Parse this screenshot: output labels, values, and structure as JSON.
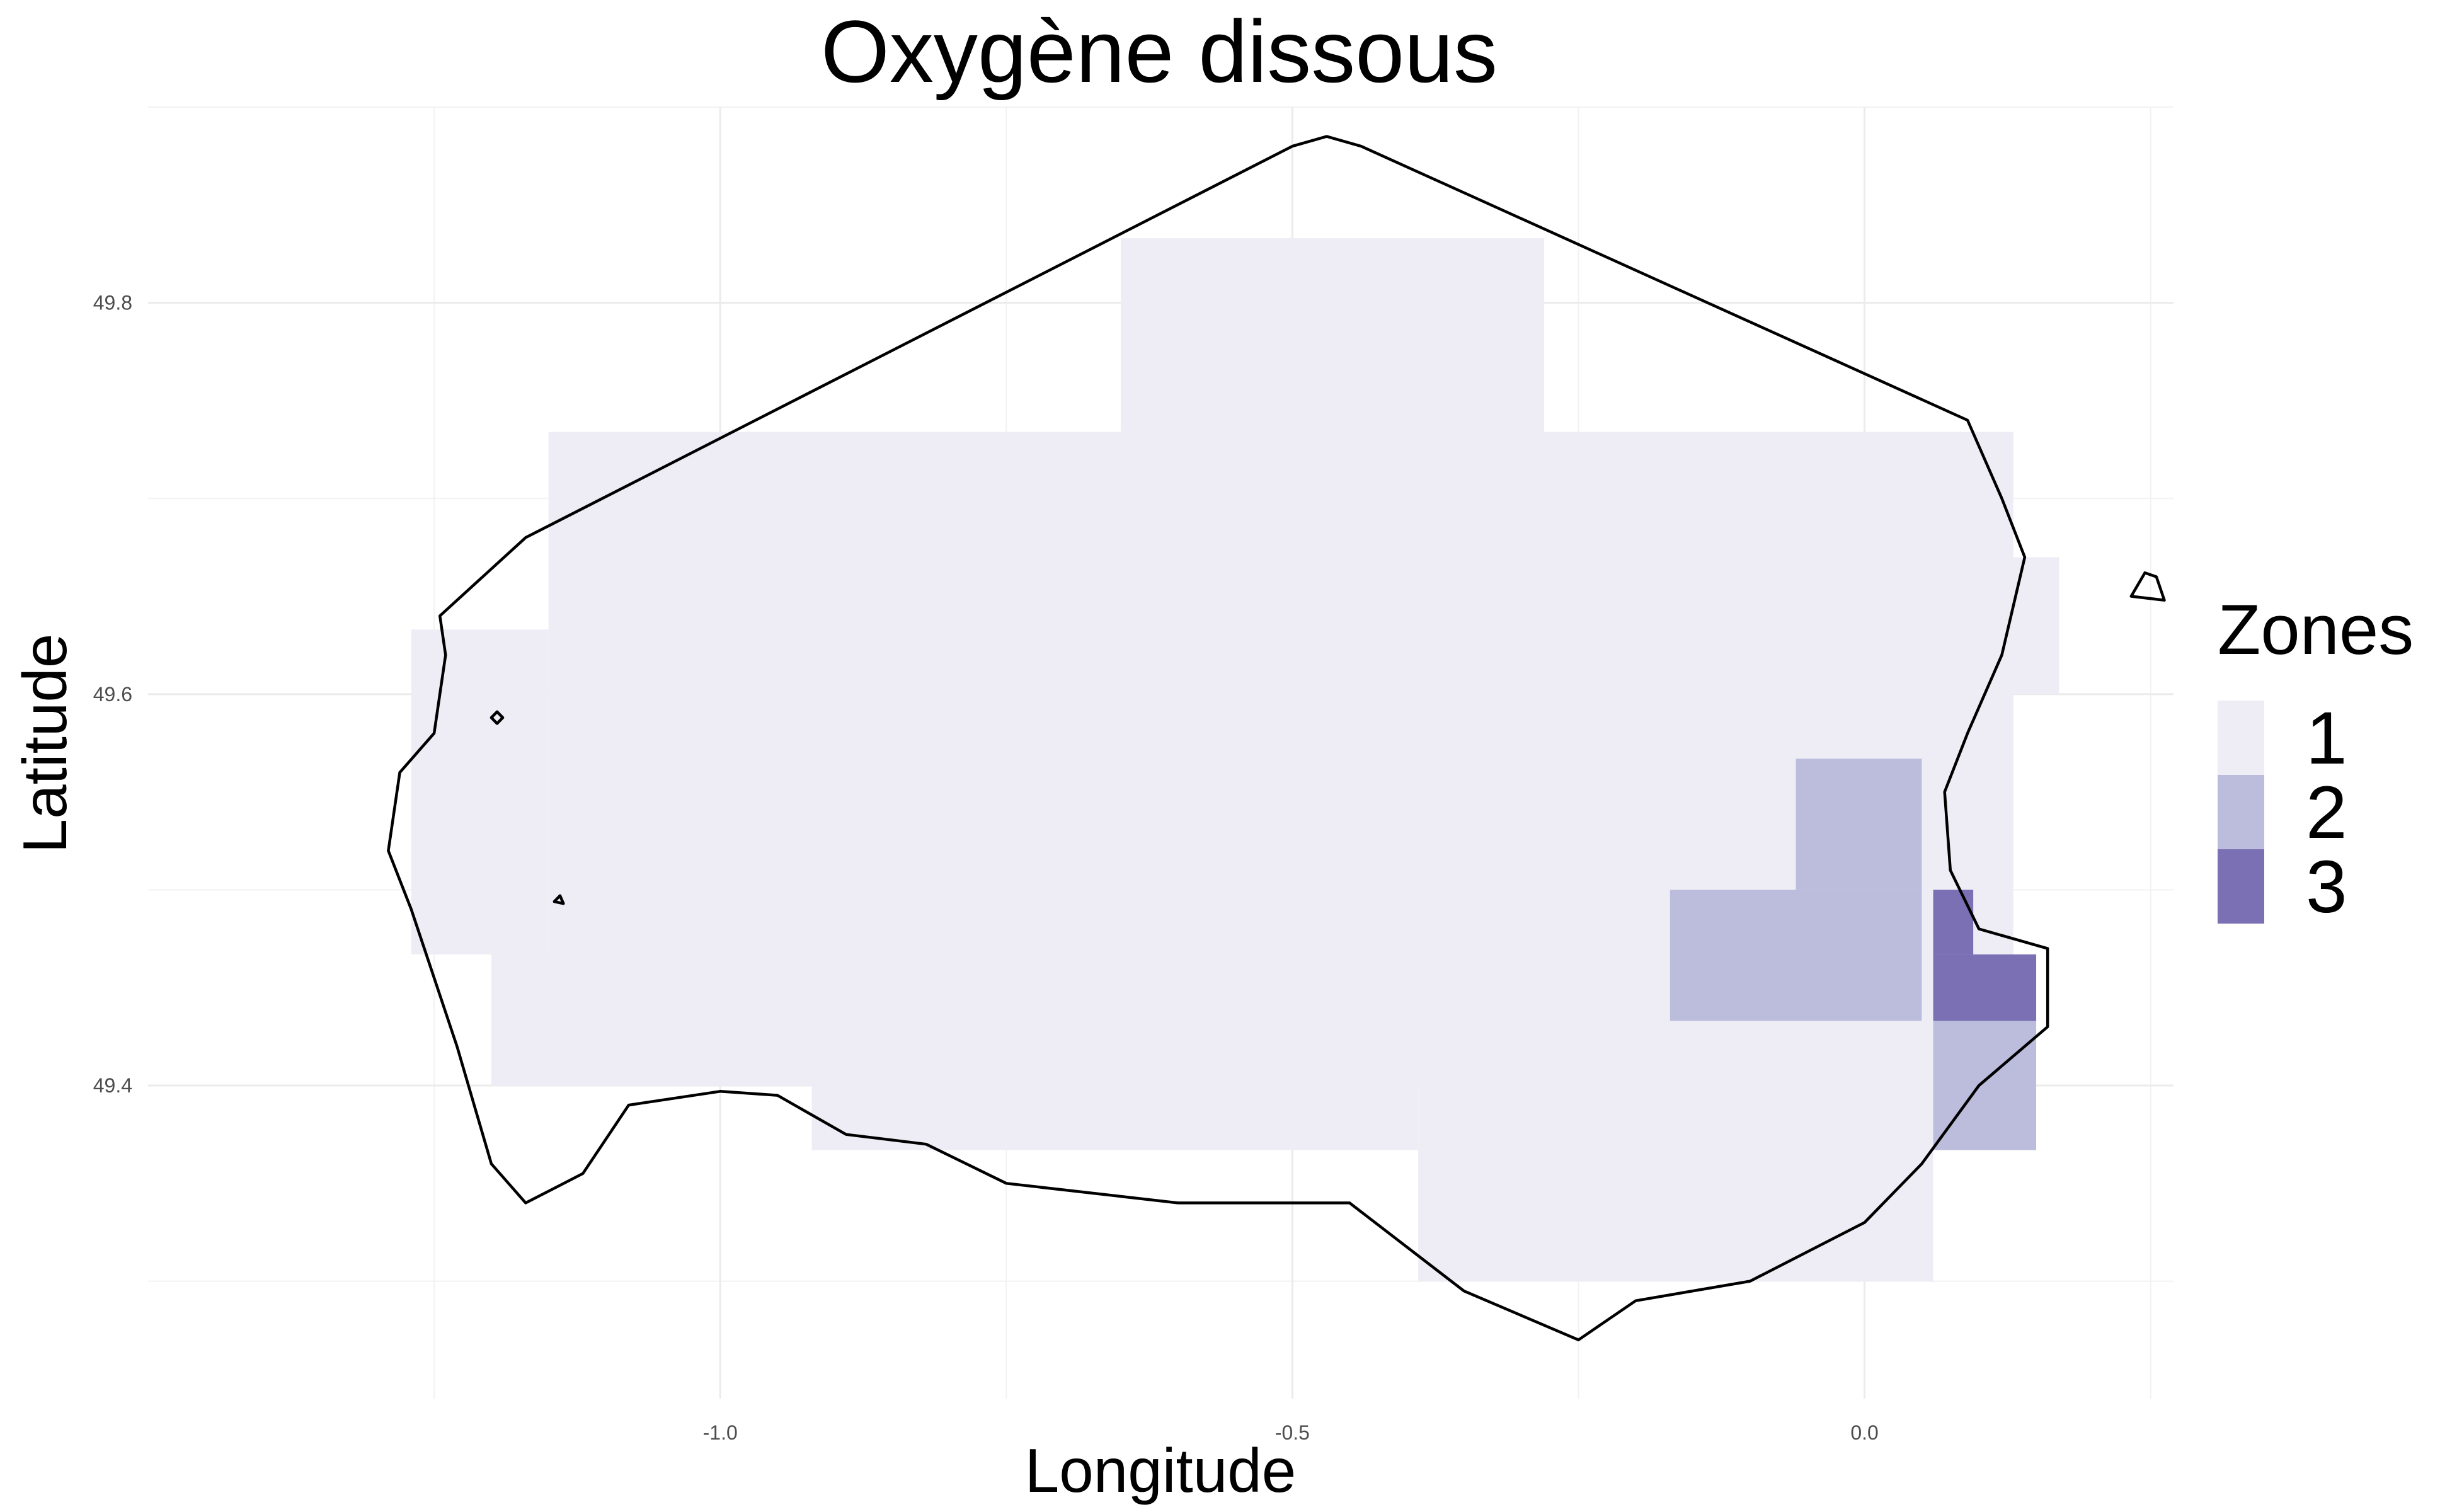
{
  "title": "Oxygène dissous",
  "x_axis": {
    "label": "Longitude",
    "range": [
      -1.5,
      0.27
    ],
    "ticks": [
      -1.0,
      -0.5,
      0.0
    ],
    "tick_labels": [
      "-1.0",
      "-0.5",
      "0.0"
    ],
    "minor_ticks": [
      -1.25,
      -0.75,
      -0.25,
      0.25
    ]
  },
  "y_axis": {
    "label": "Latitude",
    "range": [
      49.24,
      49.9
    ],
    "ticks": [
      49.4,
      49.6,
      49.8
    ],
    "tick_labels": [
      "49.4",
      "49.6",
      "49.8"
    ],
    "minor_ticks": [
      49.3,
      49.5,
      49.7,
      49.9
    ]
  },
  "legend": {
    "title": "Zones",
    "position": "right",
    "entries": [
      {
        "label": "1",
        "color": "#eeedf6"
      },
      {
        "label": "2",
        "color": "#bcbddc"
      },
      {
        "label": "3",
        "color": "#7b70b4"
      }
    ]
  },
  "chart_data": {
    "type": "heatmap",
    "grid": "on",
    "zones_scale": "categorical, Purples",
    "cells": [
      {
        "lon": [
          -0.65,
          -0.28
        ],
        "lat": [
          49.734,
          49.833
        ],
        "zone": 1
      },
      {
        "lon": [
          -1.15,
          0.13
        ],
        "lat": [
          49.467,
          49.734
        ],
        "zone": 1
      },
      {
        "lon": [
          -1.27,
          -1.15
        ],
        "lat": [
          49.467,
          49.633
        ],
        "zone": 1
      },
      {
        "lon": [
          -1.2,
          -1.15
        ],
        "lat": [
          49.4,
          49.467
        ],
        "zone": 1
      },
      {
        "lon": [
          -1.15,
          0.15
        ],
        "lat": [
          49.4,
          49.467
        ],
        "zone": 1
      },
      {
        "lon": [
          -0.92,
          -0.39
        ],
        "lat": [
          49.367,
          49.4
        ],
        "zone": 1
      },
      {
        "lon": [
          -0.39,
          0.06
        ],
        "lat": [
          49.3,
          49.4
        ],
        "zone": 1
      },
      {
        "lon": [
          0.13,
          0.17
        ],
        "lat": [
          49.6,
          49.67
        ],
        "zone": 1
      },
      {
        "lon": [
          -0.06,
          0.05
        ],
        "lat": [
          49.5,
          49.567
        ],
        "zone": 2
      },
      {
        "lon": [
          -0.17,
          0.05
        ],
        "lat": [
          49.433,
          49.5
        ],
        "zone": 2
      },
      {
        "lon": [
          0.06,
          0.15
        ],
        "lat": [
          49.367,
          49.433
        ],
        "zone": 2
      },
      {
        "lon": [
          0.06,
          0.095
        ],
        "lat": [
          49.467,
          49.5
        ],
        "zone": 3
      },
      {
        "lon": [
          0.06,
          0.15
        ],
        "lat": [
          49.433,
          49.467
        ],
        "zone": 3
      }
    ],
    "boundary": [
      [
        -1.245,
        49.64
      ],
      [
        -1.17,
        49.68
      ],
      [
        -0.5,
        49.88
      ],
      [
        -0.47,
        49.885
      ],
      [
        -0.44,
        49.88
      ],
      [
        0.09,
        49.74
      ],
      [
        0.12,
        49.7
      ],
      [
        0.14,
        49.67
      ],
      [
        0.12,
        49.62
      ],
      [
        0.09,
        49.58
      ],
      [
        0.07,
        49.55
      ],
      [
        0.075,
        49.51
      ],
      [
        0.1,
        49.48
      ],
      [
        0.16,
        49.47
      ],
      [
        0.16,
        49.43
      ],
      [
        0.1,
        49.4
      ],
      [
        0.05,
        49.36
      ],
      [
        0.0,
        49.33
      ],
      [
        -0.1,
        49.3
      ],
      [
        -0.2,
        49.29
      ],
      [
        -0.25,
        49.27
      ],
      [
        -0.35,
        49.295
      ],
      [
        -0.45,
        49.34
      ],
      [
        -0.6,
        49.34
      ],
      [
        -0.75,
        49.35
      ],
      [
        -0.82,
        49.37
      ],
      [
        -0.89,
        49.375
      ],
      [
        -0.95,
        49.395
      ],
      [
        -1.0,
        49.397
      ],
      [
        -1.08,
        49.39
      ],
      [
        -1.12,
        49.355
      ],
      [
        -1.17,
        49.34
      ],
      [
        -1.2,
        49.36
      ],
      [
        -1.23,
        49.42
      ],
      [
        -1.27,
        49.49
      ],
      [
        -1.29,
        49.52
      ],
      [
        -1.28,
        49.56
      ],
      [
        -1.25,
        49.58
      ],
      [
        -1.24,
        49.62
      ]
    ],
    "islands": [
      [
        [
          -1.2,
          49.588
        ],
        [
          -1.195,
          49.591
        ],
        [
          -1.19,
          49.588
        ],
        [
          -1.195,
          49.585
        ]
      ],
      [
        [
          -1.145,
          49.494
        ],
        [
          -1.14,
          49.497
        ],
        [
          -1.137,
          49.493
        ]
      ],
      [
        [
          0.233,
          49.65
        ],
        [
          0.245,
          49.662
        ],
        [
          0.255,
          49.66
        ],
        [
          0.262,
          49.648
        ]
      ]
    ]
  }
}
